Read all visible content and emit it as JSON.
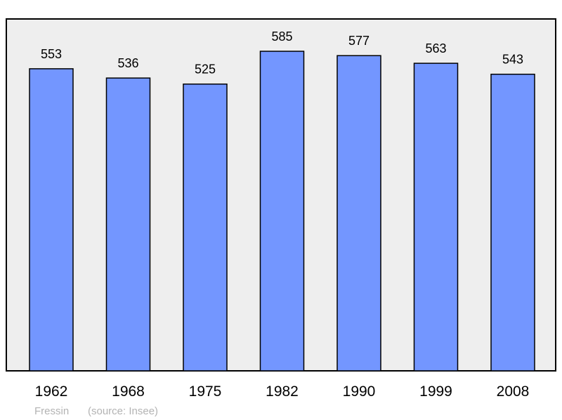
{
  "chart_data": {
    "type": "bar",
    "categories": [
      "1962",
      "1968",
      "1975",
      "1982",
      "1990",
      "1999",
      "2008"
    ],
    "values": [
      553,
      536,
      525,
      585,
      577,
      563,
      543
    ],
    "value_labels": [
      "553",
      "536",
      "525",
      "585",
      "577",
      "563",
      "543"
    ],
    "title": "",
    "xlabel": "",
    "ylabel": "",
    "ylim": [
      0,
      600
    ],
    "grid": false,
    "legend": "none"
  },
  "footer": {
    "place": "Fressin",
    "source": "(source: Insee)"
  },
  "colors": {
    "bar_fill": "#7396ff",
    "plot_background": "#eeeeee",
    "frame": "#000000",
    "footer_text": "#b3b3b3"
  }
}
